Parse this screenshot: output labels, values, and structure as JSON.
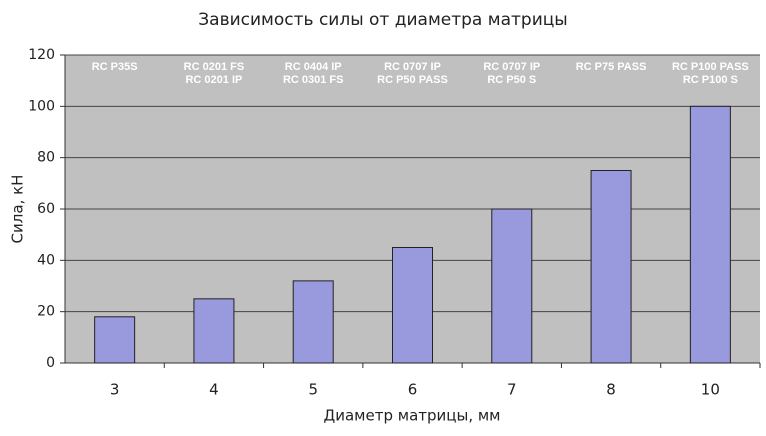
{
  "chart_data": {
    "type": "bar",
    "title": "Зависимость силы от диаметра матрицы",
    "x_label": "Диаметр матрицы, мм",
    "y_label": "Сила, кН",
    "categories": [
      "3",
      "4",
      "5",
      "6",
      "7",
      "8",
      "10"
    ],
    "values": [
      18,
      25,
      32,
      45,
      60,
      75,
      100
    ],
    "annotations": [
      [
        "RC P35S"
      ],
      [
        "RC 0201 FS",
        "RC 0201 IP"
      ],
      [
        "RC 0404 IP",
        "RC 0301 FS"
      ],
      [
        "RC 0707 IP",
        "RC P50 PASS"
      ],
      [
        "RC 0707 IP",
        "RC P50 S"
      ],
      [
        "RC P75 PASS"
      ],
      [
        "RC P100 PASS",
        "RC P100 S"
      ]
    ],
    "color": "#9999dd",
    "ylim": [
      0,
      120
    ],
    "yticks": [
      0,
      20,
      40,
      60,
      80,
      100,
      120
    ],
    "grid": true
  }
}
